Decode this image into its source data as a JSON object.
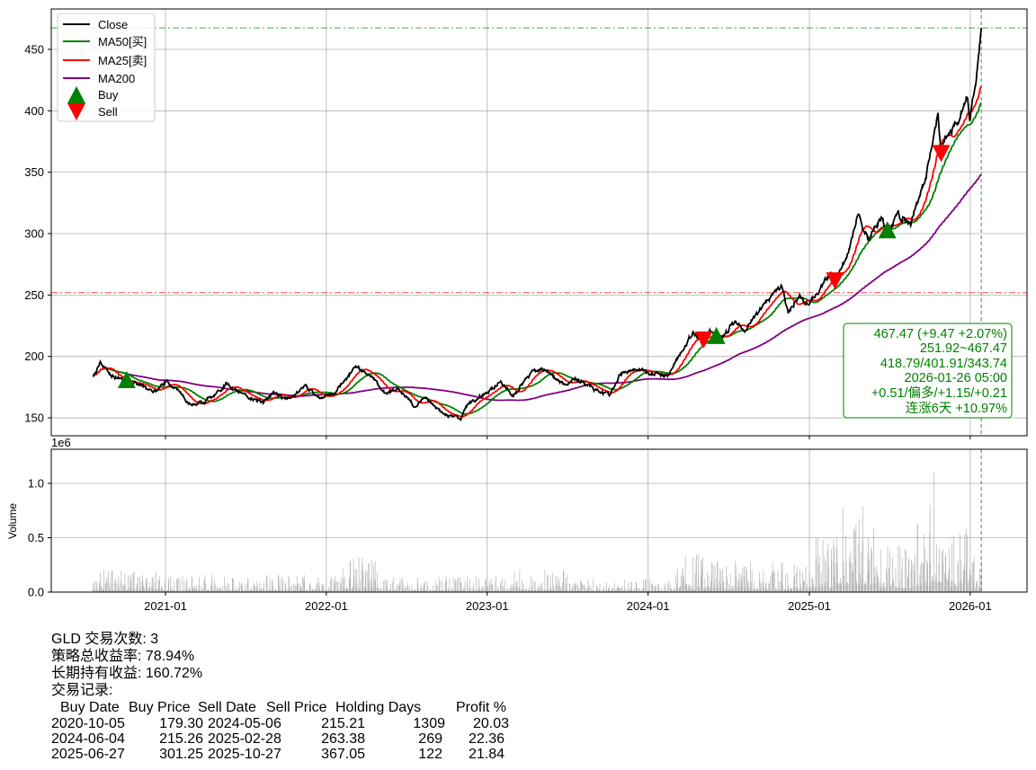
{
  "chart_data": [
    {
      "type": "line",
      "title": "",
      "ticker": "GLD",
      "ylim": [
        135.4,
        482.9
      ],
      "yticks": [
        150,
        200,
        250,
        300,
        350,
        400,
        450
      ],
      "grid": true,
      "legend": {
        "placement": "top-left",
        "entries": [
          "Close",
          "MA50[买]",
          "MA25[卖]",
          "MA200",
          "Buy",
          "Sell"
        ]
      },
      "colors": {
        "close": "#000000",
        "ma50": "#008000",
        "ma25": "#ff0000",
        "ma200": "#800080",
        "buy": "#008000",
        "sell": "#ff0000",
        "grid": "#b0b0b0"
      },
      "close_keypoints": [
        [
          "2020-07-20",
          183
        ],
        [
          "2020-08-06",
          193
        ],
        [
          "2020-09-01",
          185
        ],
        [
          "2020-10-05",
          179
        ],
        [
          "2020-11-01",
          178
        ],
        [
          "2020-12-01",
          170
        ],
        [
          "2021-01-05",
          180
        ],
        [
          "2021-03-01",
          160
        ],
        [
          "2021-04-01",
          163
        ],
        [
          "2021-05-20",
          178
        ],
        [
          "2021-07-01",
          168
        ],
        [
          "2021-08-10",
          162
        ],
        [
          "2021-09-01",
          170
        ],
        [
          "2021-10-01",
          165
        ],
        [
          "2021-11-15",
          175
        ],
        [
          "2021-12-15",
          167
        ],
        [
          "2022-01-20",
          170
        ],
        [
          "2022-03-08",
          192
        ],
        [
          "2022-04-15",
          182
        ],
        [
          "2022-05-15",
          170
        ],
        [
          "2022-06-15",
          172
        ],
        [
          "2022-07-20",
          160
        ],
        [
          "2022-08-15",
          166
        ],
        [
          "2022-09-27",
          152
        ],
        [
          "2022-11-03",
          150
        ],
        [
          "2022-11-20",
          162
        ],
        [
          "2023-01-01",
          170
        ],
        [
          "2023-02-01",
          180
        ],
        [
          "2023-02-28",
          167
        ],
        [
          "2023-04-13",
          188
        ],
        [
          "2023-05-04",
          190
        ],
        [
          "2023-06-30",
          176
        ],
        [
          "2023-07-20",
          182
        ],
        [
          "2023-08-20",
          176
        ],
        [
          "2023-10-05",
          168
        ],
        [
          "2023-10-27",
          184
        ],
        [
          "2023-12-04",
          190
        ],
        [
          "2024-01-15",
          186
        ],
        [
          "2024-02-14",
          183
        ],
        [
          "2024-03-10",
          200
        ],
        [
          "2024-04-12",
          220
        ],
        [
          "2024-05-01",
          212
        ],
        [
          "2024-05-20",
          222
        ],
        [
          "2024-06-10",
          213
        ],
        [
          "2024-07-17",
          228
        ],
        [
          "2024-08-07",
          220
        ],
        [
          "2024-09-25",
          245
        ],
        [
          "2024-10-30",
          257
        ],
        [
          "2024-11-14",
          236
        ],
        [
          "2024-12-10",
          250
        ],
        [
          "2024-12-31",
          242
        ],
        [
          "2025-01-31",
          258
        ],
        [
          "2025-02-24",
          270
        ],
        [
          "2025-02-28",
          263
        ],
        [
          "2025-04-02",
          288
        ],
        [
          "2025-04-21",
          315
        ],
        [
          "2025-05-15",
          295
        ],
        [
          "2025-06-13",
          315
        ],
        [
          "2025-06-27",
          301
        ],
        [
          "2025-07-22",
          315
        ],
        [
          "2025-08-20",
          308
        ],
        [
          "2025-09-02",
          325
        ],
        [
          "2025-09-22",
          345
        ],
        [
          "2025-10-20",
          400
        ],
        [
          "2025-10-27",
          367
        ],
        [
          "2025-11-10",
          380
        ],
        [
          "2025-12-01",
          390
        ],
        [
          "2025-12-26",
          415
        ],
        [
          "2025-12-31",
          395
        ],
        [
          "2026-01-15",
          425
        ],
        [
          "2026-01-26",
          467.47
        ]
      ],
      "buy_signals": [
        [
          "2020-10-05",
          179.3
        ],
        [
          "2024-06-04",
          215.26
        ],
        [
          "2025-06-27",
          301.25
        ]
      ],
      "sell_signals": [
        [
          "2024-05-06",
          215.21
        ],
        [
          "2025-02-28",
          263.38
        ],
        [
          "2025-10-27",
          367.05
        ]
      ],
      "hlines": [
        {
          "value": 467.47,
          "color": "#008000"
        },
        {
          "value": 251.92,
          "color": "#ff0000"
        }
      ],
      "vline_date": "2026-01-26",
      "annotation": [
        "467.47 (+9.47 +2.07%)",
        "251.92~467.47",
        "418.79/401.91/343.74",
        "2026-01-26 05:00",
        "+0.51/偏多/+1.15/+0.21",
        "连涨6天 +10.97%"
      ]
    },
    {
      "type": "bar",
      "ylabel": "Volume",
      "scale_label": "1e6",
      "ylim": [
        0,
        1.314
      ],
      "yticks": [
        "0.0",
        "0.5",
        "1.0"
      ],
      "xticks": [
        "2021-01",
        "2022-01",
        "2023-01",
        "2024-01",
        "2025-01",
        "2026-01"
      ],
      "volume_peak_by_period": [
        [
          "2020-07",
          0.22
        ],
        [
          "2021-01",
          0.16
        ],
        [
          "2022-02",
          0.37
        ],
        [
          "2022-05",
          0.15
        ],
        [
          "2023-03",
          0.22
        ],
        [
          "2023-07",
          0.12
        ],
        [
          "2024-03",
          0.35
        ],
        [
          "2024-06",
          0.3
        ],
        [
          "2025-01",
          0.5
        ],
        [
          "2025-03",
          0.85
        ],
        [
          "2025-06",
          0.45
        ],
        [
          "2025-09",
          0.75
        ],
        [
          "2025-10",
          1.12
        ],
        [
          "2025-11",
          0.6
        ],
        [
          "2026-01",
          0.35
        ]
      ]
    }
  ],
  "summary": {
    "trades": "GLD 交易次数: 3",
    "strategy_return": "策略总收益率: 78.94%",
    "buy_hold_return": "长期持有收益: 160.72%",
    "records_title": "交易记录:",
    "headers": [
      "Buy Date",
      "Buy Price",
      "Sell Date",
      "Sell Price",
      "Holding Days",
      "Profit %"
    ],
    "rows": [
      [
        "2020-10-05",
        "179.30",
        "2024-05-06",
        "215.21",
        "1309",
        "20.03"
      ],
      [
        "2024-06-04",
        "215.26",
        "2025-02-28",
        "263.38",
        "269",
        "22.36"
      ],
      [
        "2025-06-27",
        "301.25",
        "2025-10-27",
        "367.05",
        "122",
        "21.84"
      ]
    ]
  }
}
